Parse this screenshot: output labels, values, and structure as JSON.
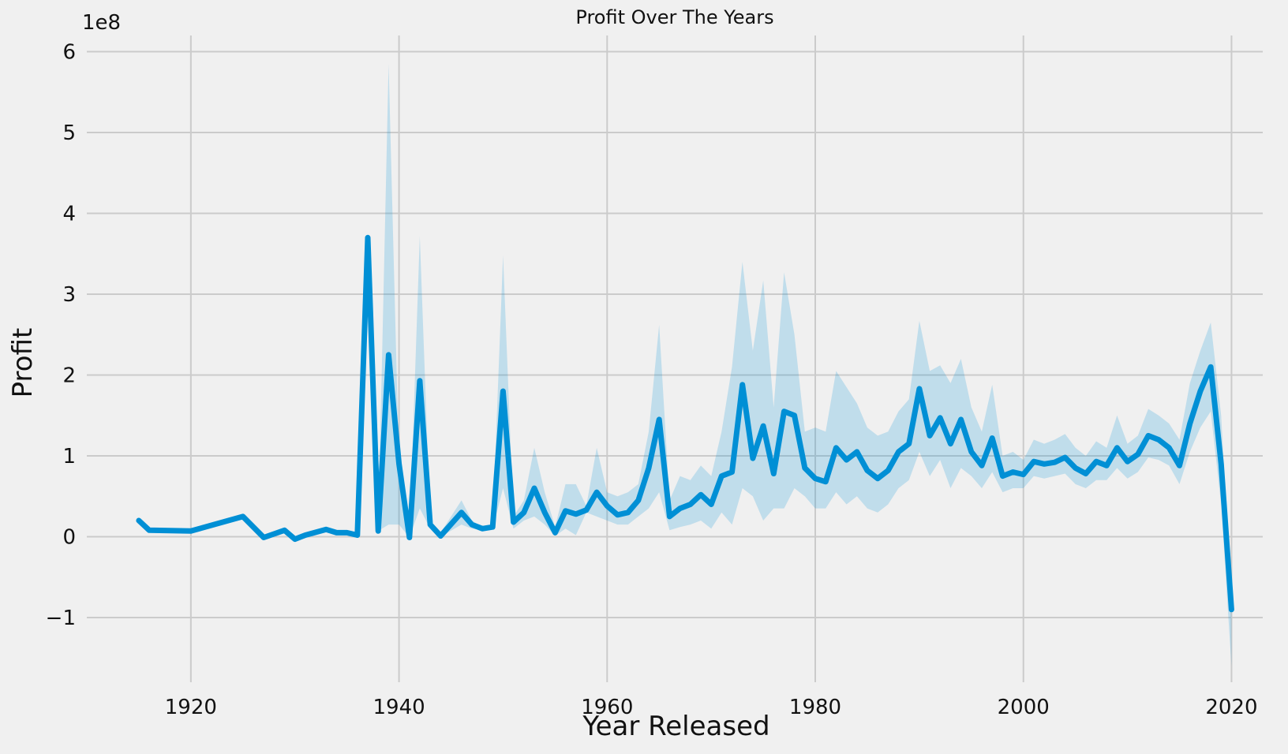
{
  "chart_data": {
    "type": "line",
    "title": "Profit Over The Years",
    "xlabel": "Year Released",
    "ylabel": "Profit",
    "y_offset_label": "1e8",
    "xlim": [
      1910,
      2023
    ],
    "ylim": [
      -1.8,
      6.2
    ],
    "x_ticks": [
      1920,
      1940,
      1960,
      1980,
      2000,
      2020
    ],
    "y_ticks": [
      -1,
      0,
      1,
      2,
      3,
      4,
      5,
      6
    ],
    "y_tick_labels": [
      "−1",
      "0",
      "1",
      "2",
      "3",
      "4",
      "5",
      "6"
    ],
    "grid": true,
    "line_color": "#008fd5",
    "band_color": "#008fd5",
    "background": "#f0f0f0",
    "series": [
      {
        "x": [
          1915,
          1916,
          1920,
          1925,
          1927,
          1929,
          1930,
          1931,
          1933,
          1934,
          1935,
          1936,
          1937,
          1938,
          1939,
          1940,
          1941,
          1942,
          1943,
          1944,
          1946,
          1947,
          1948,
          1949,
          1950,
          1951,
          1952,
          1953,
          1954,
          1955,
          1956,
          1957,
          1958,
          1959,
          1960,
          1961,
          1962,
          1963,
          1964,
          1965,
          1966,
          1967,
          1968,
          1969,
          1970,
          1971,
          1972,
          1973,
          1974,
          1975,
          1976,
          1977,
          1978,
          1979,
          1980,
          1981,
          1982,
          1983,
          1984,
          1985,
          1986,
          1987,
          1988,
          1989,
          1990,
          1991,
          1992,
          1993,
          1994,
          1995,
          1996,
          1997,
          1998,
          1999,
          2000,
          2001,
          2002,
          2003,
          2004,
          2005,
          2006,
          2007,
          2008,
          2009,
          2010,
          2011,
          2012,
          2013,
          2014,
          2015,
          2016,
          2017,
          2018,
          2019,
          2020
        ],
        "y": [
          0.2,
          0.08,
          0.07,
          0.25,
          -0.01,
          0.08,
          -0.03,
          0.02,
          0.09,
          0.05,
          0.05,
          0.02,
          3.7,
          0.07,
          2.25,
          0.9,
          -0.01,
          1.93,
          0.15,
          0.01,
          0.3,
          0.15,
          0.1,
          0.12,
          1.8,
          0.18,
          0.3,
          0.6,
          0.3,
          0.05,
          0.32,
          0.28,
          0.33,
          0.55,
          0.38,
          0.27,
          0.3,
          0.45,
          0.85,
          1.45,
          0.25,
          0.35,
          0.4,
          0.52,
          0.4,
          0.75,
          0.8,
          1.88,
          0.97,
          1.37,
          0.78,
          1.55,
          1.5,
          0.85,
          0.72,
          0.68,
          1.1,
          0.95,
          1.05,
          0.82,
          0.72,
          0.82,
          1.05,
          1.15,
          1.83,
          1.25,
          1.47,
          1.15,
          1.45,
          1.05,
          0.88,
          1.22,
          0.75,
          0.8,
          0.77,
          0.93,
          0.9,
          0.92,
          0.98,
          0.85,
          0.78,
          0.93,
          0.88,
          1.1,
          0.93,
          1.02,
          1.25,
          1.2,
          1.1,
          0.88,
          1.4,
          1.8,
          2.1,
          0.9,
          -0.9
        ]
      }
    ],
    "band_upper": [
      0.2,
      0.08,
      0.07,
      0.25,
      -0.01,
      0.08,
      -0.03,
      0.02,
      0.09,
      0.05,
      0.05,
      0.02,
      3.7,
      0.07,
      5.85,
      0.9,
      -0.01,
      3.72,
      0.2,
      0.05,
      0.45,
      0.2,
      0.12,
      0.15,
      3.48,
      0.25,
      0.45,
      1.1,
      0.55,
      0.12,
      0.65,
      0.65,
      0.38,
      1.1,
      0.55,
      0.5,
      0.55,
      0.65,
      1.3,
      2.62,
      0.45,
      0.75,
      0.7,
      0.88,
      0.75,
      1.3,
      2.1,
      3.4,
      2.3,
      3.17,
      1.6,
      3.27,
      2.5,
      1.3,
      1.35,
      1.3,
      2.05,
      1.85,
      1.65,
      1.35,
      1.25,
      1.3,
      1.55,
      1.7,
      2.67,
      2.05,
      2.12,
      1.9,
      2.2,
      1.6,
      1.3,
      1.88,
      1.0,
      1.05,
      0.95,
      1.2,
      1.15,
      1.2,
      1.27,
      1.1,
      1.0,
      1.18,
      1.1,
      1.5,
      1.15,
      1.25,
      1.58,
      1.5,
      1.4,
      1.2,
      1.9,
      2.3,
      2.65,
      1.5,
      -0.9
    ],
    "band_lower": [
      0.2,
      0.08,
      0.07,
      0.25,
      -0.01,
      0.08,
      -0.03,
      0.02,
      0.09,
      0.05,
      0.05,
      0.02,
      3.7,
      0.07,
      0.15,
      0.15,
      -0.01,
      0.35,
      0.1,
      0.0,
      0.15,
      0.1,
      0.08,
      0.1,
      0.6,
      0.1,
      0.2,
      0.25,
      0.15,
      0.01,
      0.1,
      0.02,
      0.3,
      0.25,
      0.2,
      0.15,
      0.15,
      0.25,
      0.35,
      0.55,
      0.08,
      0.12,
      0.15,
      0.2,
      0.1,
      0.3,
      0.15,
      0.6,
      0.5,
      0.2,
      0.35,
      0.35,
      0.6,
      0.5,
      0.35,
      0.35,
      0.55,
      0.4,
      0.5,
      0.35,
      0.3,
      0.4,
      0.6,
      0.7,
      1.05,
      0.75,
      0.95,
      0.6,
      0.85,
      0.75,
      0.6,
      0.8,
      0.55,
      0.6,
      0.6,
      0.75,
      0.72,
      0.75,
      0.78,
      0.65,
      0.6,
      0.7,
      0.7,
      0.85,
      0.72,
      0.8,
      0.98,
      0.95,
      0.88,
      0.65,
      1.05,
      1.35,
      1.55,
      0.4,
      -1.6
    ]
  }
}
